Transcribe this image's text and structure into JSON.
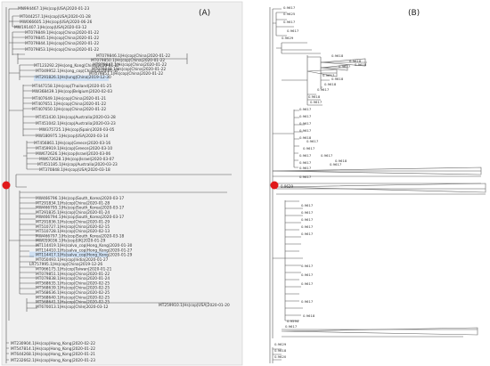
{
  "panels": [
    {
      "label": "(A)"
    },
    {
      "label": "(B)"
    }
  ],
  "tree_a": {
    "leaves": [
      "MN994467.1|Hs|cop|USA|2020-01-23",
      "MT044257.1|Hs|cop|USA|2020-01-28",
      "MW066605.1|Hs|cop|USA|2020-06-26",
      "MW191407.1|Hs|cop|USA|2020-03-12",
      "MT079849.1|Hs|cop|China|2020-01-22",
      "MT079845.1|Hs|cop|China|2020-01-22",
      "MT079844.1|Hs|cop|China|2020-01-22",
      "MT079853.1|Hs|cop|China|2020-01-22",
      "MT079846.1|Hs|cop|China|2020-01-22",
      "MT079850.1|Hs|cop|China|2020-01-22",
      "MT079847.1|Hs|cop|China|2020-01-22",
      "MT079848.1|Hs|cop|China|2020-01-22",
      "MT079851.1|Hs|cop|China|2020-01-22",
      "MT123292.2|Hs|ong_Kong|China|2020-01-27",
      "MT049952.1|Hs|ong_cop|China|2020-01-17",
      "MT291826.1|Hs|lung|China|2019-12-30",
      "MT447158.1|Hs|cop|Thailand|2020-01-25",
      "MW368439.1|Hs|cop|Belgium|2020-02-03",
      "MT407649.1|Hs|cop|China|2020-01-21",
      "MT407651.1|Hs|cop|China|2020-01-22",
      "MT407650.1|Hs|cop|China|2020-01-22",
      "MT451430.1|Hs|cop|Australia|2020-03-28",
      "MT451042.1|Hs|cop|Australia|2020-03-23",
      "MW375725.1|Hs|cop|Spain|2020-03-05",
      "MW180975.1|Hs|cop|USA|2020-03-14",
      "MT456861.1|Hs|cop|Greece|2020-03-16",
      "MT459919.1|Hs|cop|Greece|2020-03-10",
      "MW672626.1|Hs|cop|Israel|2020-03-06",
      "MW672628.1|Hs|cop|Israel|2020-03-07",
      "MT451185.1|Hs|cop|Australia|2020-03-23",
      "MT370848.1|Hs|cop|USA|2020-03-18",
      "MW466796.1|Hs|cop|South_Korea|2020-03-17",
      "MT291834.1|Hs|cop|China|2020-01-28",
      "MW466795.1|Hs|cop|South_Korea|2020-03-17",
      "MT291835.1|Hs|cop|China|2020-01-24",
      "MW466794.1|Hs|cop|South_Korea|2020-03-17",
      "MT291836.1|Hs|cop|China|2020-01-29",
      "MT510727.1|Hs|cop|China|2020-02-15",
      "MT510728.1|Hs|cop|China|2020-02-13",
      "MW466797.1|Hs|cop|South_Korea|2020-03-18",
      "MW059036.1|Hs|cop|UK|2020-01-29",
      "MT114419.1|Hs|salva_cop|Hong_Kong|2020-01-30",
      "MT114410.1|Hs|salva_cop|Hong_Kong|2020-01-27",
      "MT114417.1|Hs|salva_cop|Hong_Kong|2020-01-29",
      "MT050493.1|Hs|cop|India|2020-01-27",
      "LR757995.1|Hs|cop|China|2019-12-26",
      "MT066175.1|Hs|cop|Taiwan|2020-01-21",
      "MT079851.1|Hs|cop|China|2020-01-22",
      "MT079838.1|Hs|cop|China|2020-01-24",
      "MT568635.1|Hs|cop|China|2020-02-25",
      "MT568639.1|Hs|cop|China|2020-02-25",
      "MT568636.1|Hs|cop|China|2020-02-25",
      "MT568640.1|Hs|cop|China|2020-02-25",
      "MT568641.1|Hs|cop|China|2020-02-25",
      "MT670013.1|Hs|cop|Chile|2020-03-12",
      "MT259910.1|Hs|cop|USA|2020-01-20",
      "MT230904.1|Hs|cop|Hong_Kong|2020-02-22",
      "MT547814.1|Hs|cop|Hong_Kong|2020-01-22",
      "MT644268.1|Hs|cop|Hong_Kong|2020-01-21",
      "MT232662.1|Hs|cop|Hong_Kong|2020-01-23"
    ]
  },
  "tree_b": {
    "root_support": "0.9629",
    "support_values": [
      "0.9617",
      "0.9625",
      "0.9617",
      "0.9629",
      "0.9617",
      "0.9618",
      "0.9618",
      "0.9617",
      "0.9618",
      "0.9617",
      "0.9618",
      "0.9618",
      "0.9617",
      "0.9618",
      "0.9617",
      "0.9617",
      "0.9617",
      "0.9617",
      "0.9617",
      "0.9618",
      "0.9617",
      "0.9617",
      "0.9617",
      "0.9617",
      "0.9617",
      "0.9617",
      "0.9618",
      "0.9617",
      "0.9617",
      "0.9617",
      "0.9617",
      "0.9617",
      "0.9617",
      "0.9617",
      "0.9617",
      "0.9617",
      "0.9617",
      "0.9617",
      "0.9618",
      "0.9594",
      "0.9617",
      "0.9629",
      "0.9618",
      "0.9620"
    ]
  }
}
